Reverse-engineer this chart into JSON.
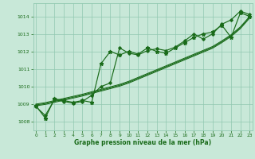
{
  "xlabel": "Graphe pression niveau de la mer (hPa)",
  "ylabel": "",
  "background_color": "#c8e8d8",
  "grid_color": "#90c8b0",
  "line_color": "#1a6b1a",
  "xlim": [
    -0.3,
    23.3
  ],
  "ylim": [
    1007.5,
    1014.75
  ],
  "yticks": [
    1008,
    1009,
    1010,
    1011,
    1012,
    1013,
    1014
  ],
  "xticks": [
    0,
    1,
    2,
    3,
    4,
    5,
    6,
    7,
    8,
    9,
    10,
    11,
    12,
    13,
    14,
    15,
    16,
    17,
    18,
    19,
    20,
    21,
    22,
    23
  ],
  "series1": [
    1008.9,
    1008.2,
    1009.3,
    1009.2,
    1009.1,
    1009.2,
    1009.1,
    1011.3,
    1012.0,
    1011.8,
    1012.0,
    1011.85,
    1012.2,
    1012.0,
    1011.9,
    1012.2,
    1012.5,
    1012.8,
    1013.0,
    1013.1,
    1013.5,
    1012.8,
    1014.2,
    1014.0
  ],
  "series2": [
    1008.85,
    1008.35,
    1009.25,
    1009.15,
    1009.05,
    1009.15,
    1009.5,
    1010.0,
    1010.2,
    1012.2,
    1011.9,
    1011.8,
    1012.05,
    1012.15,
    1012.05,
    1012.25,
    1012.6,
    1013.0,
    1012.7,
    1013.0,
    1013.55,
    1013.8,
    1014.3,
    1014.1
  ],
  "trend1": [
    1009.0,
    1009.08,
    1009.2,
    1009.32,
    1009.44,
    1009.56,
    1009.7,
    1009.84,
    1009.98,
    1010.12,
    1010.3,
    1010.52,
    1010.74,
    1010.96,
    1011.18,
    1011.4,
    1011.62,
    1011.84,
    1012.06,
    1012.28,
    1012.6,
    1012.95,
    1013.4,
    1014.0
  ],
  "trend2": [
    1008.95,
    1009.03,
    1009.15,
    1009.27,
    1009.39,
    1009.51,
    1009.65,
    1009.79,
    1009.93,
    1010.07,
    1010.25,
    1010.47,
    1010.69,
    1010.91,
    1011.13,
    1011.35,
    1011.57,
    1011.79,
    1012.01,
    1012.23,
    1012.55,
    1012.9,
    1013.35,
    1013.95
  ],
  "trend3": [
    1008.9,
    1008.98,
    1009.1,
    1009.22,
    1009.34,
    1009.46,
    1009.6,
    1009.74,
    1009.88,
    1010.02,
    1010.2,
    1010.42,
    1010.64,
    1010.86,
    1011.08,
    1011.3,
    1011.52,
    1011.74,
    1011.96,
    1012.18,
    1012.5,
    1012.85,
    1013.3,
    1013.9
  ]
}
